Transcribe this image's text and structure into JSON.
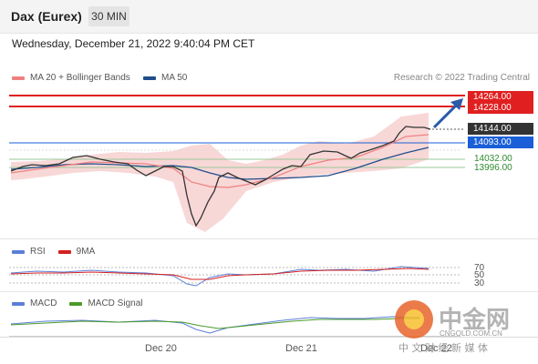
{
  "header": {
    "title": "Dax (Eurex)",
    "timeframe": "30 MIN",
    "datetime": "Wednesday, December 21, 2022 9:40:04 PM CET"
  },
  "legend": {
    "ma20_label": "MA 20 + Bollinger Bands",
    "ma50_label": "MA 50",
    "research": "Research © 2022 Trading Central",
    "colors": {
      "ma20": "#f08080",
      "ma50": "#1f4e8c"
    }
  },
  "levels": {
    "r2": "14264.00",
    "r1": "14228.00",
    "last": "14144.00",
    "pivot": "14093.00",
    "s1": "14032.00",
    "s2": "13996.00",
    "colors": {
      "resistance": "#e02020",
      "last": "#333333",
      "pivot": "#1a5fd8",
      "support": "#2f8a2f"
    }
  },
  "rsi": {
    "label": "RSI",
    "ma_label": "9MA",
    "levels": [
      "70",
      "50",
      "30"
    ],
    "colors": {
      "rsi": "#5b7fd6",
      "ma": "#d42020"
    }
  },
  "macd": {
    "label": "MACD",
    "signal_label": "MACD Signal",
    "colors": {
      "macd": "#5b7fd6",
      "signal": "#4a9a2a"
    }
  },
  "xaxis": {
    "labels": [
      "Dec 20",
      "Dec 21",
      "Dec 22"
    ]
  },
  "watermark": {
    "name": "中金网",
    "url": "CNGOLD.COM.CN",
    "tagline": "中 文 财 经 新 媒 体"
  }
}
